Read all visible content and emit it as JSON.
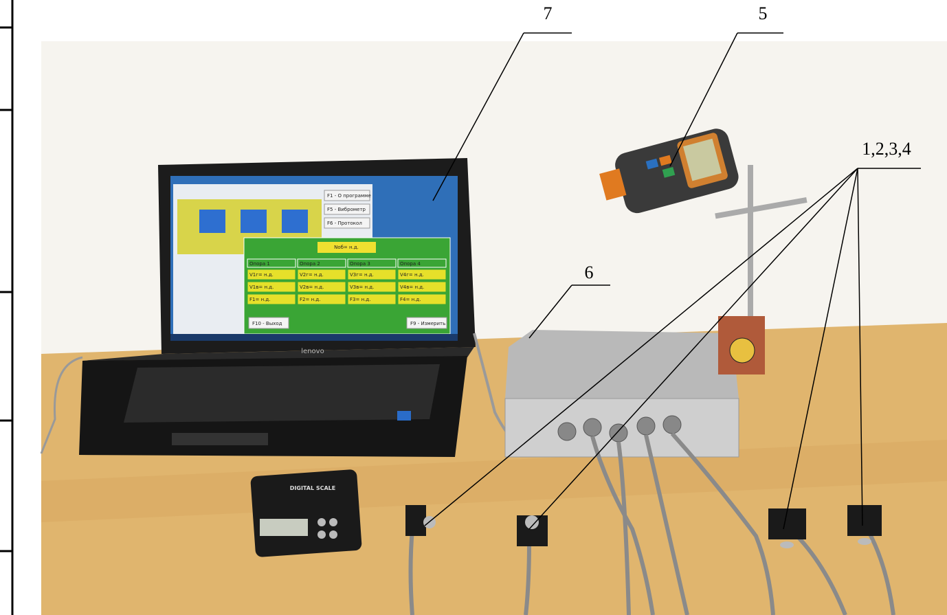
{
  "callouts": [
    {
      "label": "7"
    },
    {
      "label": "5"
    },
    {
      "label": "6"
    },
    {
      "label": "1,2,3,4"
    }
  ],
  "laptop_screen": {
    "header": "Nоб= н.д.",
    "side_buttons": [
      "F1 - О программе",
      "F5 - Виброметр",
      "F6 - Протокол"
    ],
    "columns": [
      {
        "title": "Опора 1",
        "rows": [
          "V1г= н.д.",
          "V1в= н.д.",
          "F1= н.д."
        ]
      },
      {
        "title": "Опора 2",
        "rows": [
          "V2г= н.д.",
          "V2в= н.д.",
          "F2= н.д."
        ]
      },
      {
        "title": "Опора 3",
        "rows": [
          "V3г= н.д.",
          "V3в= н.д.",
          "F3= н.д."
        ]
      },
      {
        "title": "Опора 4",
        "rows": [
          "V4г= н.д.",
          "V4в= н.д.",
          "F4= н.д."
        ]
      }
    ],
    "buttons": [
      "F10 - Выход",
      "F9 - Измерить"
    ]
  },
  "laptop_brand": "lenovo",
  "scale_label": "DIGITAL SCALE"
}
